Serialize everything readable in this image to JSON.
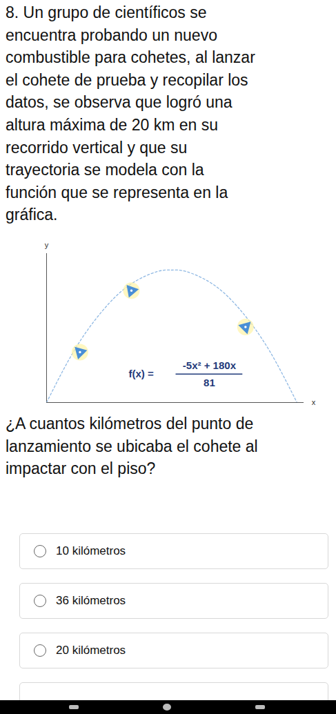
{
  "question": {
    "lines": [
      "8. Un grupo de científicos se",
      "encuentra probando un nuevo",
      "combustible para cohetes, al lanzar",
      "el cohete de prueba y recopilar los",
      "datos, se observa que logró una",
      "altura máxima de 20 km en su",
      "recorrido vertical y que su",
      "trayectoria se modela con la",
      "función que se representa en la",
      "gráfica."
    ]
  },
  "chart_data": {
    "type": "line",
    "x": [
      0,
      4,
      8,
      12,
      16,
      18,
      20,
      24,
      28,
      32,
      36
    ],
    "values": [
      0,
      7.9,
      13.8,
      17.8,
      19.8,
      20,
      19.8,
      17.8,
      13.8,
      7.9,
      0
    ],
    "color": "#8fb8e3",
    "line_style": "dotted",
    "xlim": [
      0,
      37
    ],
    "ylim": [
      0,
      22.5
    ],
    "xticks": [],
    "yticks": [],
    "tick_labels": false,
    "x_label": "x",
    "y_label": "y",
    "annotation": {
      "lhs": "f(x) =",
      "numerator": "-5x² + 180x",
      "denominator": "81"
    }
  },
  "prompt": {
    "lines": [
      "¿A cuantos kilómetros del punto de",
      "lanzamiento se ubicaba el cohete al",
      "impactar con el piso?"
    ]
  },
  "options": [
    "10 kilómetros",
    "36 kilómetros",
    "20 kilómetros"
  ]
}
